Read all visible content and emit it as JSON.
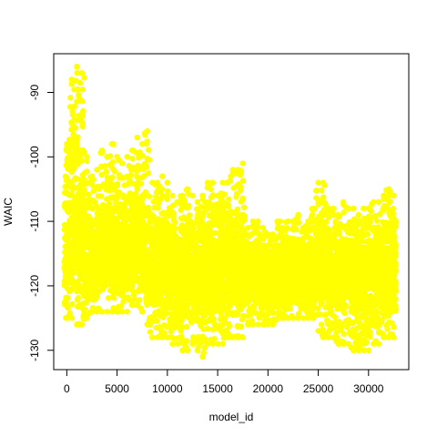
{
  "chart_data": {
    "type": "scatter",
    "title": "",
    "xlabel": "model_id",
    "ylabel": "WAIC",
    "xlim": [
      -1300,
      34000
    ],
    "ylim": [
      -133,
      -84
    ],
    "xticks": [
      0,
      5000,
      10000,
      15000,
      20000,
      25000,
      30000
    ],
    "xtick_labels": [
      "0",
      "5000",
      "10000",
      "15000",
      "20000",
      "25000",
      "30000"
    ],
    "yticks": [
      -130,
      -120,
      -110,
      -100,
      -90
    ],
    "ytick_labels": [
      "-130",
      "-120",
      "-110",
      "-100",
      "-90"
    ],
    "grid": false,
    "legend": "none",
    "point_color": "#ffff00",
    "series": [
      {
        "x": [
          0,
          500,
          1000,
          1500,
          2000,
          2500,
          3000,
          3500,
          4000,
          4500,
          5000,
          5500,
          6000,
          6500,
          7000,
          7500,
          8000,
          8500,
          9000,
          9500,
          10000,
          10500,
          11000,
          11500,
          12000,
          12500,
          13000,
          13500,
          14000,
          14500,
          15000,
          15500,
          16000,
          16500,
          17000,
          17500,
          18000,
          18500,
          19000,
          19500,
          20000,
          20500,
          21000,
          21500,
          22000,
          22500,
          23000,
          23500,
          24000,
          24500,
          25000,
          25500,
          26000,
          26500,
          27000,
          27500,
          28000,
          28500,
          29000,
          29500,
          30000,
          30500,
          31000,
          31500,
          32000,
          32500
        ],
        "y_min": [
          -125,
          -125,
          -126,
          -126,
          -125,
          -124,
          -124,
          -124,
          -124,
          -124,
          -124,
          -124,
          -124,
          -123,
          -123,
          -124,
          -126,
          -128,
          -128,
          -128,
          -128,
          -129,
          -129,
          -130,
          -130,
          -129,
          -130,
          -131,
          -129,
          -129,
          -129,
          -129,
          -128,
          -128,
          -128,
          -128,
          -126,
          -126,
          -126,
          -126,
          -126,
          -126,
          -125,
          -125,
          -125,
          -125,
          -125,
          -125,
          -125,
          -125,
          -127,
          -128,
          -128,
          -128,
          -129,
          -129,
          -129,
          -130,
          -130,
          -130,
          -130,
          -129,
          -129,
          -128,
          -128,
          -128
        ],
        "y_max": [
          -98,
          -88,
          -86,
          -87,
          -100,
          -103,
          -102,
          -99,
          -100,
          -98,
          -100,
          -101,
          -100,
          -99,
          -97,
          -98,
          -96,
          -104,
          -104,
          -103,
          -104,
          -106,
          -107,
          -106,
          -105,
          -106,
          -107,
          -106,
          -104,
          -104,
          -106,
          -104,
          -104,
          -102,
          -102,
          -101,
          -111,
          -110,
          -110,
          -111,
          -112,
          -112,
          -110,
          -111,
          -110,
          -110,
          -109,
          -111,
          -110,
          -108,
          -104,
          -104,
          -108,
          -108,
          -109,
          -107,
          -108,
          -108,
          -109,
          -108,
          -108,
          -107,
          -107,
          -106,
          -105,
          -106
        ],
        "y_center": [
          -116,
          -113,
          -112,
          -113,
          -116,
          -116,
          -116,
          -116,
          -115,
          -115,
          -115,
          -115,
          -115,
          -114,
          -114,
          -115,
          -116,
          -117,
          -117,
          -117,
          -117,
          -117,
          -118,
          -118,
          -118,
          -118,
          -118,
          -118,
          -118,
          -118,
          -118,
          -117,
          -117,
          -117,
          -117,
          -117,
          -118,
          -118,
          -118,
          -118,
          -118,
          -118,
          -118,
          -118,
          -118,
          -118,
          -118,
          -118,
          -118,
          -118,
          -117,
          -117,
          -118,
          -118,
          -118,
          -118,
          -118,
          -118,
          -118,
          -118,
          -118,
          -118,
          -118,
          -118,
          -117,
          -117
        ]
      }
    ]
  }
}
